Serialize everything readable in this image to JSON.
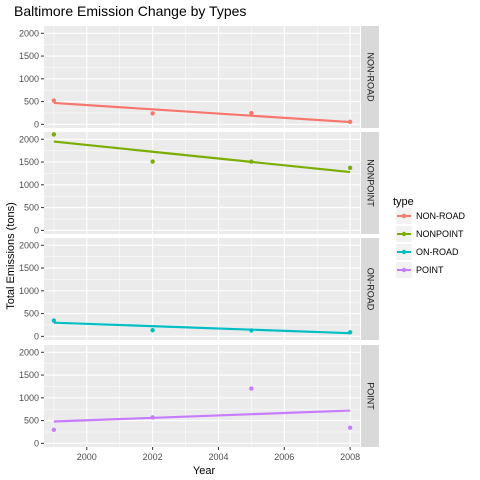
{
  "chart_data": {
    "type": "scatter",
    "title": "Baltimore Emission Change by Types",
    "xlabel": "Year",
    "ylabel": "Total Emissions (tons)",
    "x_ticks": [
      2000,
      2002,
      2004,
      2006,
      2008
    ],
    "y_ticks": [
      0,
      500,
      1000,
      1500,
      2000
    ],
    "xlim": [
      1998.7,
      2008.3
    ],
    "ylim": [
      -80,
      2160
    ],
    "facet_by": "type",
    "grid": true,
    "legend": {
      "title": "type",
      "position": "right",
      "entries": [
        "NON-ROAD",
        "NONPOINT",
        "ON-ROAD",
        "POINT"
      ]
    },
    "series": [
      {
        "name": "NON-ROAD",
        "color": "#F8766D",
        "x": [
          1999,
          2002,
          2005,
          2008
        ],
        "y": [
          522.9,
          240.8,
          248.9,
          55.8
        ],
        "trend": {
          "x": [
            1999,
            2008
          ],
          "y": [
            470,
            50
          ]
        }
      },
      {
        "name": "NONPOINT",
        "color": "#7CAE00",
        "x": [
          1999,
          2002,
          2005,
          2008
        ],
        "y": [
          2107.6,
          1509.5,
          1509.5,
          1373.2
        ],
        "trend": {
          "x": [
            1999,
            2008
          ],
          "y": [
            1950,
            1280
          ]
        }
      },
      {
        "name": "ON-ROAD",
        "color": "#00BFC4",
        "x": [
          1999,
          2002,
          2005,
          2008
        ],
        "y": [
          346.8,
          134.3,
          130.4,
          88.3
        ],
        "trend": {
          "x": [
            1999,
            2008
          ],
          "y": [
            300,
            70
          ]
        }
      },
      {
        "name": "POINT",
        "color": "#C77CFF",
        "x": [
          1999,
          2002,
          2005,
          2008
        ],
        "y": [
          296.8,
          569.3,
          1202.5,
          344.98
        ],
        "trend": {
          "x": [
            1999,
            2008
          ],
          "y": [
            480,
            720
          ]
        }
      }
    ]
  }
}
